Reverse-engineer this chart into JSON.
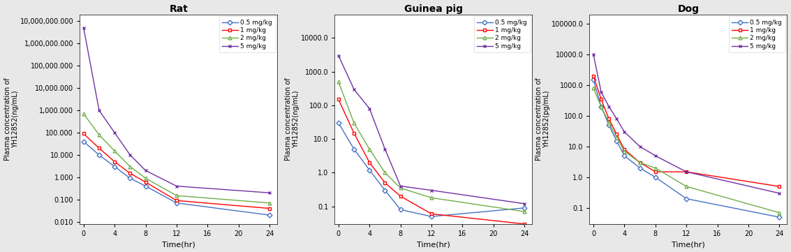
{
  "rat": {
    "title": "Rat",
    "ylabel": "Plasma concentration of\nYH12852(ng/mL)",
    "xlabel": "Time(hr)",
    "time": [
      0,
      2,
      4,
      6,
      8,
      12,
      24
    ],
    "series": {
      "0.5 mg/kg": [
        40,
        10,
        3,
        0.9,
        0.4,
        0.07,
        0.02
      ],
      "1 mg/kg": [
        90,
        20,
        5,
        1.5,
        0.6,
        0.09,
        0.04
      ],
      "2 mg/kg": [
        700,
        80,
        15,
        3,
        0.9,
        0.15,
        0.07
      ],
      "5 mg/kg": [
        5000000,
        1000,
        100,
        10,
        2,
        0.4,
        0.2
      ]
    },
    "colors": {
      "0.5 mg/kg": "#4472C4",
      "1 mg/kg": "#FF0000",
      "2 mg/kg": "#70AD47",
      "5 mg/kg": "#7030A0"
    },
    "markers": {
      "0.5 mg/kg": "D",
      "1 mg/kg": "s",
      "2 mg/kg": "^",
      "5 mg/kg": "x"
    },
    "ylim_log": [
      0.008,
      20000000
    ],
    "yticks": [
      0.01,
      0.1,
      1.0,
      10.0,
      100.0,
      1000.0,
      10000.0,
      100000.0,
      1000000.0,
      10000000.0
    ],
    "ytick_labels": [
      "0.010",
      "0.100",
      "1.000",
      "10.000",
      "100.000",
      "1,000.000",
      "10,000.000",
      "100,000.000",
      "1,000,000.000",
      "10,000,000.000"
    ],
    "xticks": [
      0,
      4,
      8,
      12,
      16,
      20,
      24
    ],
    "xlim": [
      -0.5,
      25
    ]
  },
  "guinea_pig": {
    "title": "Guinea pig",
    "ylabel": "Plasma concentration of\nYH12852(ng/mL)",
    "xlabel": "Time(hr)",
    "time": [
      0,
      2,
      4,
      6,
      8,
      12,
      24
    ],
    "series": {
      "0.5 mg/kg": [
        30,
        5,
        1.2,
        0.3,
        0.08,
        0.05,
        0.09
      ],
      "1 mg/kg": [
        150,
        15,
        2,
        0.5,
        0.2,
        0.06,
        0.03
      ],
      "2 mg/kg": [
        500,
        30,
        5,
        1,
        0.35,
        0.18,
        0.07
      ],
      "5 mg/kg": [
        3000,
        300,
        80,
        5,
        0.4,
        0.3,
        0.12
      ]
    },
    "colors": {
      "0.5 mg/kg": "#4472C4",
      "1 mg/kg": "#FF0000",
      "2 mg/kg": "#70AD47",
      "5 mg/kg": "#7030A0"
    },
    "markers": {
      "0.5 mg/kg": "D",
      "1 mg/kg": "s",
      "2 mg/kg": "^",
      "5 mg/kg": "x"
    },
    "ylim_log": [
      0.03,
      50000
    ],
    "yticks": [
      0.1,
      1.0,
      10.0,
      100.0,
      1000.0,
      10000.0
    ],
    "ytick_labels": [
      "0.1",
      "1.0",
      "10.0",
      "100.0",
      "1000.0",
      "10000.0"
    ],
    "xticks": [
      0,
      4,
      8,
      12,
      16,
      20,
      24
    ],
    "xlim": [
      -0.5,
      25
    ],
    "neg_end": {
      "1 mg/kg": [
        24,
        -0.03
      ]
    }
  },
  "dog": {
    "title": "Dog",
    "ylabel": "Plasma concentration of\nYH12852(pg/mL)",
    "xlabel": "Time(hr)",
    "time": [
      0,
      1,
      2,
      3,
      4,
      6,
      8,
      12,
      24
    ],
    "series": {
      "0.5 mg/kg": [
        1500,
        200,
        50,
        15,
        5,
        2,
        1,
        0.2,
        0.05
      ],
      "1 mg/kg": [
        2000,
        350,
        80,
        25,
        8,
        3,
        1.5,
        1.5,
        0.5
      ],
      "2 mg/kg": [
        800,
        200,
        60,
        20,
        7,
        3,
        2,
        0.5,
        0.07
      ],
      "5 mg/kg": [
        10000,
        600,
        200,
        80,
        30,
        10,
        5,
        1.5,
        0.3
      ]
    },
    "colors": {
      "0.5 mg/kg": "#4472C4",
      "1 mg/kg": "#FF0000",
      "2 mg/kg": "#70AD47",
      "5 mg/kg": "#7030A0"
    },
    "markers": {
      "0.5 mg/kg": "D",
      "1 mg/kg": "s",
      "2 mg/kg": "^",
      "5 mg/kg": "x"
    },
    "ylim_log": [
      0.03,
      200000
    ],
    "yticks": [
      0.1,
      1.0,
      10.0,
      100.0,
      1000.0,
      10000.0,
      100000.0
    ],
    "ytick_labels": [
      "0.1",
      "1.0",
      "10.0",
      "100.0",
      "1000.0",
      "10000.0",
      "100000.0"
    ],
    "xticks": [
      0,
      4,
      8,
      12,
      16,
      20,
      24
    ],
    "xlim": [
      -0.5,
      25
    ]
  },
  "bg_color": "#e8e8e8",
  "panel_bg": "#ffffff",
  "legend_labels": [
    "0.5 mg/kg",
    "1 mg/kg",
    "2 mg/kg",
    "5 mg/kg"
  ]
}
